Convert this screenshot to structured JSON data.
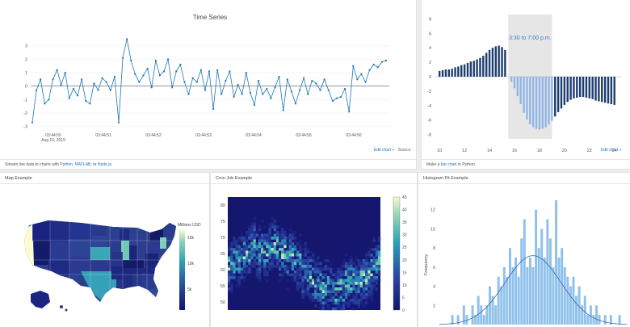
{
  "timeseries": {
    "title": "Time Series",
    "footer_prefix": "Stream live data to charts with ",
    "footer_link1": "Python",
    "footer_sep1": ", ",
    "footer_link2": "MATLAB",
    "footer_sep2": ", or ",
    "footer_link3": "Node.js",
    "footer_end": ".",
    "edit_label": "Edit chart »",
    "source_label": " · Source"
  },
  "bars": {
    "footer_prefix": "Make a ",
    "footer_link": "bar chart",
    "footer_suffix": " in Python",
    "edit_label": "Edit chart »"
  },
  "map": {
    "header": "Map Example",
    "colorbar_title": "Millions USD"
  },
  "cron": {
    "header": "Cron Job Example"
  },
  "histfit": {
    "header": "Histogram Fit Example"
  },
  "chart_data": [
    {
      "id": "timeseries",
      "type": "line",
      "title": "Time Series",
      "x_tick_labels": [
        "03:44:50\nAug 15, 2015",
        "03:44:51",
        "03:44:52",
        "03:44:53",
        "03:44:54",
        "03:44:55",
        "03:44:56"
      ],
      "ylim": [
        -3.2,
        4
      ],
      "y_ticks": [
        -3,
        -2,
        -1,
        0,
        1,
        2,
        3
      ],
      "values": [
        -2.7,
        -0.3,
        0.5,
        -1.3,
        -1,
        0.5,
        1.2,
        0.1,
        1,
        -0.9,
        -0.2,
        -0.7,
        0.5,
        -1.1,
        -1.3,
        0.2,
        -0.3,
        0.6,
        0.3,
        -0.3,
        0.7,
        -2.7,
        2.1,
        3.5,
        1.9,
        0.9,
        0.3,
        0.8,
        1.3,
        -0.1,
        1.9,
        0.8,
        1.1,
        2,
        -0.1,
        1.1,
        1.6,
        0.3,
        -0.6,
        0.6,
        0.3,
        1.2,
        -0.3,
        1.1,
        -1.7,
        1.2,
        -0.6,
        0.4,
        1.1,
        -0.8,
        0.1,
        -0.6,
        1,
        -0.5,
        -1.4,
        0.4,
        -0.6,
        -0.2,
        -0.9,
        -0.1,
        0.7,
        -1.8,
        0.5,
        -0.4,
        -1.3,
        -0.3,
        0.6,
        -0.6,
        0.4,
        0.2,
        -0.3,
        0.5,
        -0.3,
        -1.1,
        -0.9,
        -0.8,
        -0.2,
        -1.9,
        1.5,
        0.5,
        0.9,
        0.3,
        1.2,
        1.6,
        1.4,
        1.8,
        1.9
      ]
    },
    {
      "id": "bars",
      "type": "bar",
      "x_ticks": [
        10,
        12,
        14,
        16,
        18,
        20,
        22,
        24
      ],
      "xlim": [
        9.6,
        24.6
      ],
      "y_ticks": [
        -8,
        -6,
        -4,
        -2,
        0,
        2,
        4,
        6,
        8
      ],
      "ylim": [
        -8.6,
        8.6
      ],
      "annotation": "3:30 to 7:00 p.m.",
      "highlight_range": [
        15.5,
        19
      ],
      "x": [
        10,
        10.25,
        10.5,
        10.75,
        11,
        11.25,
        11.5,
        11.75,
        12,
        12.25,
        12.5,
        12.75,
        13,
        13.25,
        13.5,
        13.75,
        14,
        14.25,
        14.5,
        14.75,
        15,
        15.25,
        15.75,
        16,
        16.25,
        16.5,
        16.75,
        17,
        17.25,
        17.5,
        17.75,
        18,
        18.25,
        18.5,
        18.75,
        19,
        19.25,
        19.5,
        19.75,
        20,
        20.25,
        20.5,
        20.75,
        21,
        21.25,
        21.5,
        21.75,
        22,
        22.25,
        22.5,
        22.75,
        23,
        23.25,
        23.5,
        23.75,
        24
      ],
      "values": [
        0.8,
        0.9,
        1,
        1,
        1.1,
        1.3,
        1.4,
        1.6,
        1.7,
        1.9,
        2.1,
        2.2,
        2.4,
        2.6,
        2.9,
        3.3,
        3.7,
        4,
        4.2,
        4.3,
        4.1,
        3.7,
        -0.7,
        -1.6,
        -2.7,
        -3.8,
        -5,
        -5.9,
        -6.6,
        -7,
        -7.2,
        -7.3,
        -7.2,
        -7,
        -6.6,
        -6.1,
        -5.5,
        -4.9,
        -4.4,
        -3.9,
        -3.5,
        -3.2,
        -3,
        -2.9,
        -2.8,
        -2.8,
        -2.9,
        -3,
        -3.1,
        -3.3,
        -3.4,
        -3.5,
        -3.6,
        -3.7,
        -3.8,
        -3.9
      ]
    },
    {
      "id": "map",
      "type": "other",
      "colorbar_ticks": [
        "15k",
        "10k",
        "5k"
      ]
    },
    {
      "id": "cron",
      "type": "heatmap",
      "y_ticks": [
        50,
        55,
        60,
        65,
        70,
        75,
        80
      ],
      "colorbar_ticks": [
        0,
        5,
        10,
        15,
        20,
        25,
        30,
        35,
        40,
        45
      ]
    },
    {
      "id": "histfit",
      "type": "bar",
      "ylabel": "Frequency",
      "y_ticks": [
        2,
        4,
        6,
        8,
        10,
        12
      ],
      "ylim": [
        0,
        14
      ],
      "values": [
        0,
        0,
        0,
        0,
        1,
        0,
        1,
        0,
        2,
        1,
        0,
        2,
        1,
        3,
        2,
        1,
        2,
        4,
        3,
        2,
        5,
        4,
        6,
        5,
        8,
        6,
        7,
        5,
        9,
        11,
        6,
        7,
        6,
        12,
        8,
        10,
        7,
        11,
        9,
        6,
        13,
        7,
        8,
        6,
        5,
        4,
        5,
        3,
        4,
        2,
        3,
        1,
        2,
        1,
        2,
        1,
        0,
        1,
        0,
        1,
        0,
        0,
        1,
        0,
        0
      ]
    }
  ]
}
